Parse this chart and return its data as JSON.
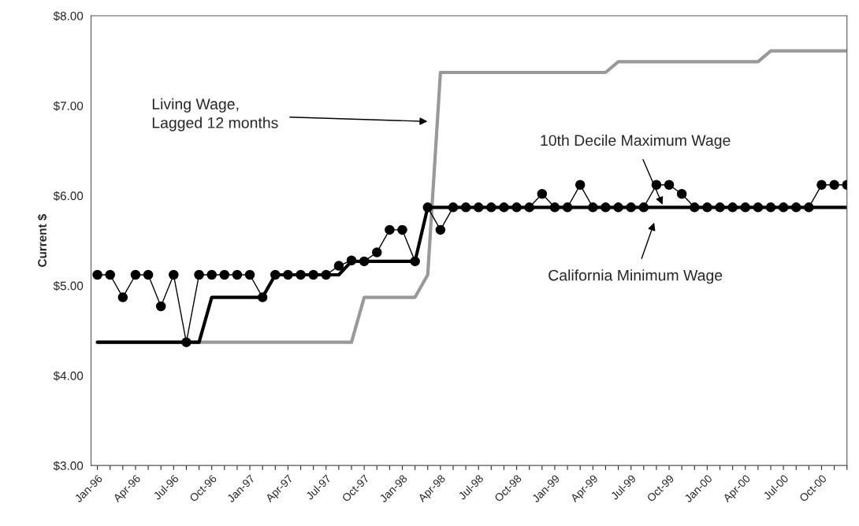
{
  "chart_data": {
    "type": "line",
    "ylabel": "Current $",
    "categories": [
      "Jan-96",
      null,
      null,
      "Apr-96",
      null,
      null,
      "Jul-96",
      null,
      null,
      "Oct-96",
      null,
      null,
      "Jan-97",
      null,
      null,
      "Apr-97",
      null,
      null,
      "Jul-97",
      null,
      null,
      "Oct-97",
      null,
      null,
      "Jan-98",
      null,
      null,
      "Apr-98",
      null,
      null,
      "Jul-98",
      null,
      null,
      "Oct-98",
      null,
      null,
      "Jan-99",
      null,
      null,
      "Apr-99",
      null,
      null,
      "Jul-99",
      null,
      null,
      "Oct-99",
      null,
      null,
      "Jan-00",
      null,
      null,
      "Apr-00",
      null,
      null,
      "Jul-00",
      null,
      null,
      "Oct-00",
      null,
      null
    ],
    "series": [
      {
        "color": "#999999",
        "marker": "none",
        "values": [
          4.37,
          4.37,
          4.37,
          4.37,
          4.37,
          4.37,
          4.37,
          4.37,
          4.37,
          4.37,
          4.37,
          4.37,
          4.37,
          4.37,
          4.37,
          4.37,
          4.37,
          4.37,
          4.37,
          4.37,
          4.37,
          4.87,
          4.87,
          4.87,
          4.87,
          4.87,
          5.12,
          7.37,
          7.37,
          7.37,
          7.37,
          7.37,
          7.37,
          7.37,
          7.37,
          7.37,
          7.37,
          7.37,
          7.37,
          7.37,
          7.37,
          7.49,
          7.49,
          7.49,
          7.49,
          7.49,
          7.49,
          7.49,
          7.49,
          7.49,
          7.49,
          7.49,
          7.49,
          7.61,
          7.61,
          7.61,
          7.61,
          7.61,
          7.61,
          7.61
        ]
      },
      {
        "color": "#000000",
        "marker": "circle",
        "values": [
          5.12,
          5.12,
          4.87,
          5.12,
          5.12,
          4.77,
          5.12,
          4.37,
          5.12,
          5.12,
          5.12,
          5.12,
          5.12,
          4.87,
          5.12,
          5.12,
          5.12,
          5.12,
          5.12,
          5.22,
          5.28,
          5.27,
          5.37,
          5.62,
          5.62,
          5.27,
          5.87,
          5.62,
          5.87,
          5.87,
          5.87,
          5.87,
          5.87,
          5.87,
          5.87,
          6.02,
          5.87,
          5.87,
          6.12,
          5.87,
          5.87,
          5.87,
          5.87,
          5.87,
          6.12,
          6.12,
          6.02,
          5.87,
          5.87,
          5.87,
          5.87,
          5.87,
          5.87,
          5.87,
          5.87,
          5.87,
          5.87,
          6.12,
          6.12,
          6.12
        ]
      },
      {
        "color": "#000000",
        "marker": "none",
        "values": [
          4.37,
          4.37,
          4.37,
          4.37,
          4.37,
          4.37,
          4.37,
          4.37,
          4.37,
          4.87,
          4.87,
          4.87,
          4.87,
          4.87,
          5.12,
          5.12,
          5.12,
          5.12,
          5.12,
          5.12,
          5.27,
          5.27,
          5.27,
          5.27,
          5.27,
          5.27,
          5.87,
          5.87,
          5.87,
          5.87,
          5.87,
          5.87,
          5.87,
          5.87,
          5.87,
          5.87,
          5.87,
          5.87,
          5.87,
          5.87,
          5.87,
          5.87,
          5.87,
          5.87,
          5.87,
          5.87,
          5.87,
          5.87,
          5.87,
          5.87,
          5.87,
          5.87,
          5.87,
          5.87,
          5.87,
          5.87,
          5.87,
          5.87,
          5.87,
          5.87
        ]
      }
    ],
    "ylim": [
      3,
      8
    ],
    "yticks": [
      {
        "value": 3,
        "label": "$3.00"
      },
      {
        "value": 4,
        "label": "$4.00"
      },
      {
        "value": 5,
        "label": "$5.00"
      },
      {
        "value": 6,
        "label": "$6.00"
      },
      {
        "value": 7,
        "label": "$7.00"
      },
      {
        "value": 8,
        "label": "$8.00"
      }
    ],
    "grid": false,
    "annotations": [
      "Living Wage,\nLagged 12 months",
      "10th Decile Maximum Wage",
      "California Minimum Wage"
    ]
  }
}
